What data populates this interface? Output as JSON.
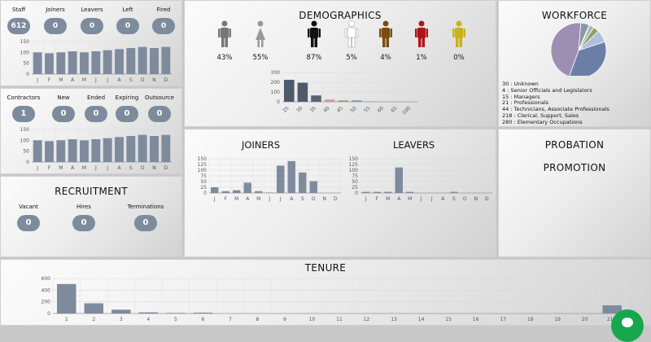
{
  "staff_panel": {
    "stats": [
      {
        "label": "Staff",
        "value": "612"
      },
      {
        "label": "Joiners",
        "value": "0"
      },
      {
        "label": "Leavers",
        "value": "0"
      },
      {
        "label": "Left",
        "value": "0"
      },
      {
        "label": "Fired",
        "value": "0"
      }
    ],
    "chart_data": {
      "type": "bar",
      "categories": [
        "J",
        "F",
        "M",
        "A",
        "M",
        "J",
        "J",
        "A",
        "S",
        "O",
        "N",
        "D"
      ],
      "values": [
        100,
        96,
        100,
        105,
        100,
        105,
        110,
        115,
        120,
        125,
        120,
        125
      ],
      "ylim": [
        0,
        150
      ],
      "yticks": [
        0,
        50,
        100,
        150
      ]
    }
  },
  "contractors_panel": {
    "stats": [
      {
        "label": "Contractors",
        "value": "1"
      },
      {
        "label": "New",
        "value": "0"
      },
      {
        "label": "Ended",
        "value": "0"
      },
      {
        "label": "Expiring",
        "value": "0"
      },
      {
        "label": "Outsource",
        "value": "0"
      }
    ],
    "chart_data": {
      "type": "bar",
      "categories": [
        "J",
        "F",
        "M",
        "A",
        "M",
        "J",
        "J",
        "A",
        "S",
        "O",
        "N",
        "D"
      ],
      "values": [
        100,
        96,
        100,
        105,
        100,
        105,
        110,
        115,
        120,
        125,
        120,
        125
      ],
      "ylim": [
        0,
        150
      ],
      "yticks": [
        0,
        50,
        100,
        150
      ]
    }
  },
  "recruitment": {
    "title": "RECRUITMENT",
    "stats": [
      {
        "label": "Vacant",
        "value": "0"
      },
      {
        "label": "Hires",
        "value": "0"
      },
      {
        "label": "Terminations",
        "value": "0"
      }
    ]
  },
  "demographics": {
    "title": "DEMOGRAPHICS",
    "figures": [
      {
        "icon": "male-figure-icon",
        "color": "#777777",
        "pct": "43%"
      },
      {
        "icon": "female-figure-icon",
        "color": "#999999",
        "pct": "55%"
      },
      {
        "icon": "black-figure-icon",
        "color": "#111111",
        "pct": "87%"
      },
      {
        "icon": "white-figure-icon",
        "color": "#ffffff",
        "pct": "5%"
      },
      {
        "icon": "brown-figure-icon",
        "color": "#7a4a12",
        "pct": "4%"
      },
      {
        "icon": "red-figure-icon",
        "color": "#b01418",
        "pct": "1%"
      },
      {
        "icon": "yellow-figure-icon",
        "color": "#c9b21a",
        "pct": "0%"
      }
    ],
    "chart_data": {
      "type": "bar",
      "categories": [
        "25",
        "30",
        "35",
        "40",
        "45",
        "50",
        "55",
        "60",
        "65",
        "100"
      ],
      "values": [
        225,
        195,
        65,
        22,
        15,
        15,
        5,
        3,
        2,
        1
      ],
      "colors": [
        "#4e5a6b",
        "#4e5a6b",
        "#5a6474",
        "#c89aa0",
        "#8fa87a",
        "#8095b8",
        "#9aa4b2",
        "#b0a0a8",
        "#a8b0a0",
        "#a8a8a8"
      ],
      "ylim": [
        0,
        300
      ],
      "yticks": [
        0,
        100,
        200,
        300
      ]
    }
  },
  "workforce": {
    "title": "WORKFORCE",
    "legend": [
      "30 : Unknown",
      "4 : Senior Officials and Legislators",
      "15 : Managers",
      "21 : Professionals",
      "44 : Technicians, Associate Professionals",
      "218 : Clerical, Support, Sales",
      "280 : Elementary Occupations"
    ],
    "chart_data": {
      "type": "pie",
      "values": [
        30,
        4,
        15,
        21,
        44,
        218,
        280
      ],
      "labels": [
        "Unknown",
        "Senior Officials and Legislators",
        "Managers",
        "Professionals",
        "Technicians, Associate Professionals",
        "Clerical, Support, Sales",
        "Elementary Occupations"
      ],
      "colors": [
        "#8a96aa",
        "#5a6b85",
        "#a9b6a0",
        "#8fa070",
        "#b0c0d8",
        "#6b7fa6",
        "#9d8fb2"
      ]
    }
  },
  "joiners": {
    "title": "JOINERS",
    "chart_data": {
      "type": "bar",
      "categories": [
        "J",
        "F",
        "M",
        "A",
        "M",
        "J",
        "J",
        "A",
        "S",
        "O",
        "N",
        "D"
      ],
      "values": [
        25,
        8,
        12,
        45,
        8,
        2,
        120,
        140,
        90,
        52,
        0,
        0
      ],
      "ylim": [
        0,
        150
      ],
      "yticks": [
        0,
        25,
        50,
        75,
        100,
        125,
        150
      ]
    }
  },
  "leavers": {
    "title": "LEAVERS",
    "chart_data": {
      "type": "bar",
      "categories": [
        "J",
        "F",
        "M",
        "A",
        "M",
        "J",
        "J",
        "A",
        "S",
        "O",
        "N",
        "D"
      ],
      "values": [
        5,
        5,
        5,
        112,
        5,
        0,
        0,
        0,
        5,
        0,
        0,
        0
      ],
      "ylim": [
        0,
        150
      ],
      "yticks": [
        0,
        25,
        50,
        75,
        100,
        125,
        150
      ]
    }
  },
  "probation": {
    "title": "PROBATION"
  },
  "promotion": {
    "title": "PROMOTION"
  },
  "tenure": {
    "title": "TENURE",
    "chart_data": {
      "type": "bar",
      "categories": [
        "1",
        "2",
        "3",
        "4",
        "5",
        "6",
        "7",
        "8",
        "9",
        "10",
        "11",
        "12",
        "13",
        "14",
        "15",
        "16",
        "17",
        "18",
        "19",
        "20",
        "21+"
      ],
      "values": [
        505,
        175,
        65,
        20,
        10,
        15,
        0,
        0,
        0,
        0,
        0,
        0,
        0,
        0,
        0,
        0,
        0,
        0,
        0,
        0,
        140
      ],
      "ylim": [
        0,
        600
      ],
      "yticks": [
        0,
        200,
        400,
        600
      ]
    }
  },
  "chat": {
    "icon": "chat-bubble-icon",
    "color": "#17a84e"
  }
}
